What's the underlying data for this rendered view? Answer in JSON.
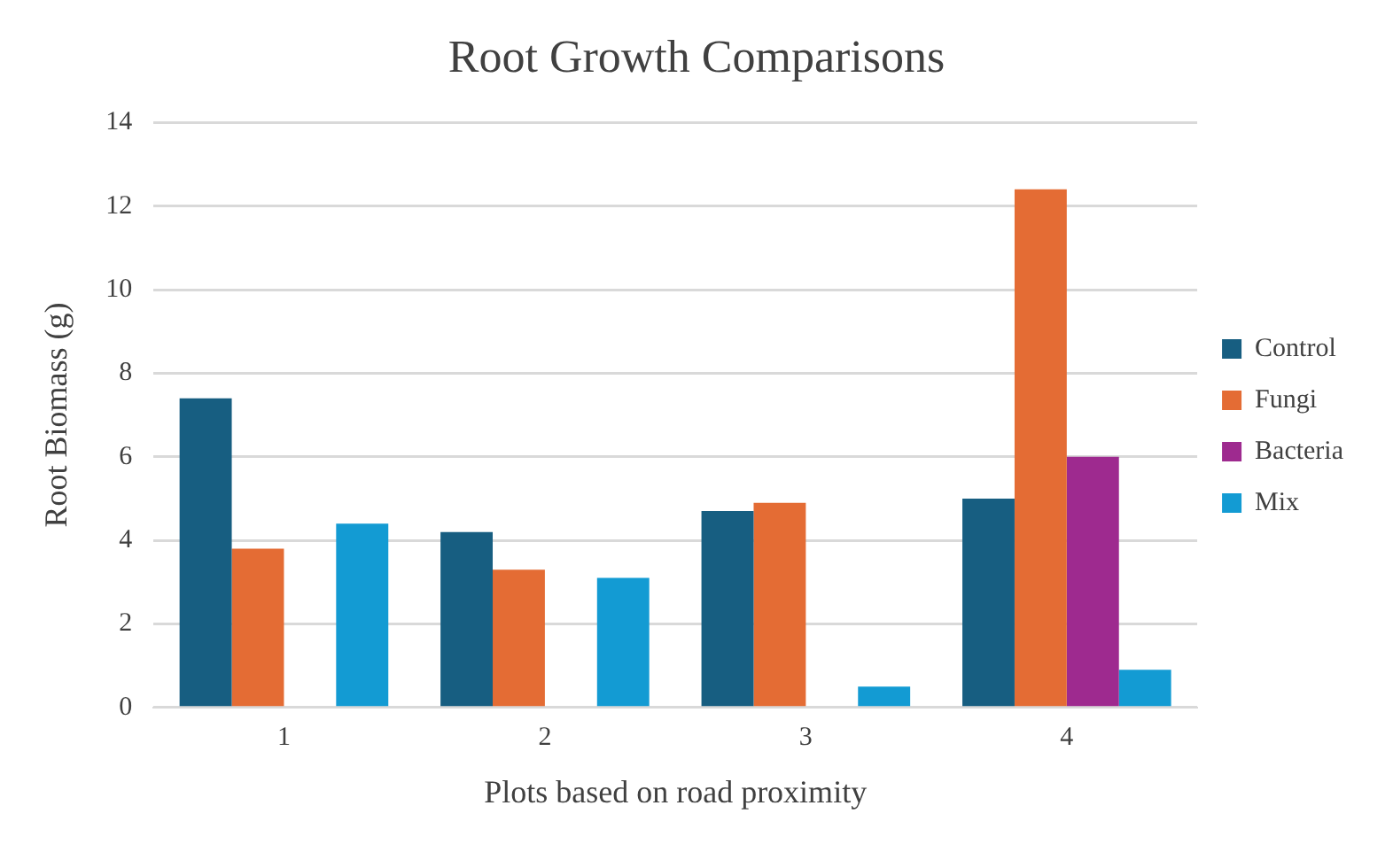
{
  "chart_data": {
    "type": "bar",
    "title": "Root Growth Comparisons",
    "xlabel": "Plots based on road proximity",
    "ylabel": "Root Biomass (g)",
    "categories": [
      "1",
      "2",
      "3",
      "4"
    ],
    "series": [
      {
        "name": "Control",
        "color": "#175e81",
        "values": [
          7.4,
          4.2,
          4.7,
          5.0
        ]
      },
      {
        "name": "Fungi",
        "color": "#e46c34",
        "values": [
          3.8,
          3.3,
          4.9,
          12.4
        ]
      },
      {
        "name": "Bacteria",
        "color": "#9e2a8f",
        "values": [
          null,
          null,
          null,
          6.0
        ]
      },
      {
        "name": "Mix",
        "color": "#139bd3",
        "values": [
          4.4,
          3.1,
          0.5,
          0.9
        ]
      }
    ],
    "ylim": [
      0,
      14
    ],
    "yticks": [
      0,
      2,
      4,
      6,
      8,
      10,
      12,
      14
    ],
    "grid": "y",
    "legend": "right"
  }
}
